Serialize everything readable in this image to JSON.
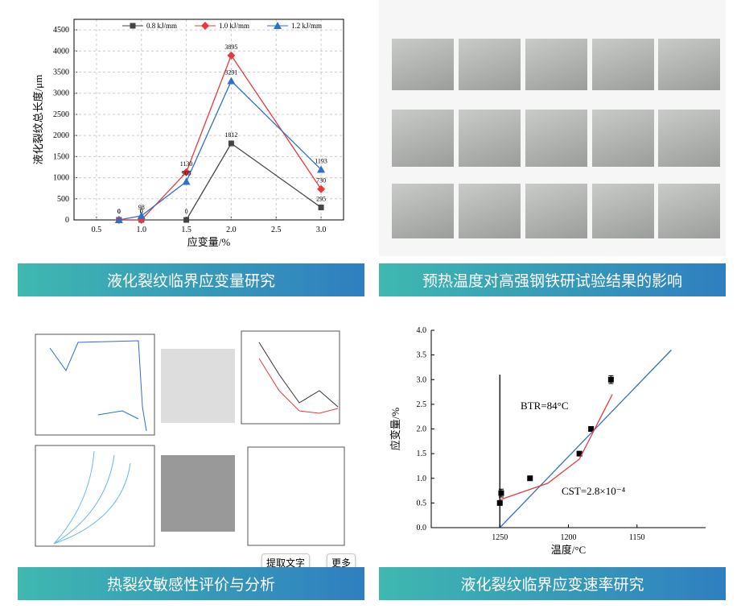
{
  "captions": [
    "液化裂纹临界应变量研究",
    "预热温度对高强钢铁研试验结果的影响",
    "热裂纹敏感性评价与分析",
    "液化裂纹临界应变速率研究"
  ],
  "overlay": {
    "extract_text": "提取文字",
    "more": "更多"
  },
  "chart_data": [
    {
      "type": "line",
      "x_label": "应变量/%",
      "y_label": "液化裂纹总长度/μm",
      "x": [
        0.75,
        1,
        1.5,
        2,
        3
      ],
      "xlim": [
        0.25,
        3.25
      ],
      "xticks": [
        0.5,
        {
          "value": 1,
          "label": "1.0"
        },
        1.5,
        {
          "value": 2,
          "label": "2.0"
        },
        2.5,
        {
          "value": 3,
          "label": "3.0"
        }
      ],
      "ylim": [
        0,
        4750
      ],
      "yticks": [
        0,
        500,
        1000,
        1500,
        2000,
        2500,
        3000,
        3500,
        4000,
        4500
      ],
      "grid": true,
      "data_labels": true,
      "legend": "top",
      "series": [
        {
          "name": "0.8 kJ/mm",
          "color": "#444444",
          "marker": "square",
          "values": [
            0,
            0,
            0,
            1812,
            295
          ]
        },
        {
          "name": "1.0 kJ/mm",
          "color": "#e8383d",
          "marker": "diamond",
          "values": [
            0,
            0,
            1130,
            3895,
            730
          ]
        },
        {
          "name": "1.2 kJ/mm",
          "color": "#2f6fcc",
          "marker": "triangle",
          "values": [
            0,
            98,
            905,
            3291,
            1193
          ]
        }
      ]
    },
    {
      "type": "scatter",
      "x_label": "温度/°C",
      "y_label": "应变量/%",
      "xlim": [
        1300,
        1100
      ],
      "xticks": [
        1250,
        1200,
        1150
      ],
      "ylim": [
        0,
        4
      ],
      "yticks": [
        {
          "value": 0,
          "label": "0.0"
        },
        0.5,
        {
          "value": 1,
          "label": "1.0"
        },
        1.5,
        {
          "value": 2,
          "label": "2.0"
        },
        2.5,
        {
          "value": 3,
          "label": "3.0"
        },
        3.5,
        {
          "value": 4,
          "label": "4.0"
        }
      ],
      "grid": false,
      "annotations": [
        "BTR=84°C",
        "CST=2.8×10⁻⁴"
      ],
      "series": [
        {
          "color": "#000000",
          "marker": "square",
          "line": false,
          "x": [
            1250,
            1249,
            1228,
            1192,
            1183.5,
            1169
          ],
          "values": [
            0.5,
            0.7,
            1.0,
            1.5,
            2.0,
            3.0
          ],
          "errors": [
            null,
            0.08,
            null,
            null,
            null,
            0.08
          ]
        },
        {
          "color": "#2f6fcc",
          "marker": "none",
          "x": [
            1250,
            1125
          ],
          "values": [
            0,
            3.6
          ]
        },
        {
          "color": "#e8383d",
          "marker": "none",
          "x": [
            1249.4,
            1215,
            1192,
            1168
          ],
          "values": [
            0.57,
            0.9,
            1.39,
            2.7
          ]
        },
        {
          "color": "#000000",
          "marker": "none",
          "x": [
            1250,
            1250
          ],
          "values": [
            0,
            3.1
          ]
        }
      ]
    }
  ]
}
